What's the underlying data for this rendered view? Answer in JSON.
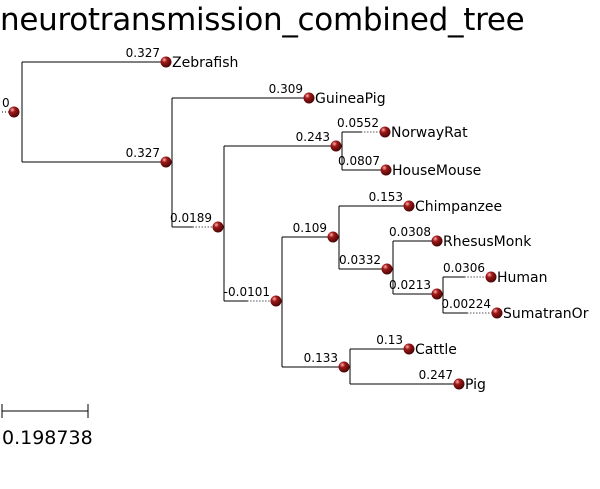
{
  "title": "neurotransmission_combined_tree",
  "node_color": "#a01818",
  "scale_bar": {
    "label": "0.198738"
  },
  "root": {
    "label": "0"
  },
  "internal_nodes": [
    {
      "id": "n1",
      "label": "0.327"
    },
    {
      "id": "n2",
      "label": "0.0189"
    },
    {
      "id": "n3",
      "label": "0.243"
    },
    {
      "id": "n4",
      "label": "-0.0101"
    },
    {
      "id": "n5",
      "label": "0.109"
    },
    {
      "id": "n6",
      "label": "0.0332"
    },
    {
      "id": "n7",
      "label": "0.0213"
    },
    {
      "id": "n8",
      "label": "0.133"
    }
  ],
  "leaves": [
    {
      "id": "zebrafish",
      "name": "Zebrafish",
      "length": "0.327"
    },
    {
      "id": "guineapig",
      "name": "GuineaPig",
      "length": "0.309"
    },
    {
      "id": "norwayrat",
      "name": "NorwayRat",
      "length": "0.0552"
    },
    {
      "id": "housemouse",
      "name": "HouseMouse",
      "length": "0.0807"
    },
    {
      "id": "chimpanzee",
      "name": "Chimpanzee",
      "length": "0.153"
    },
    {
      "id": "rhesusmonk",
      "name": "RhesusMonk",
      "length": "0.0308"
    },
    {
      "id": "human",
      "name": "Human",
      "length": "0.0306"
    },
    {
      "id": "sumatranor",
      "name": "SumatranOr",
      "length": "0.00224"
    },
    {
      "id": "cattle",
      "name": "Cattle",
      "length": "0.13"
    },
    {
      "id": "pig",
      "name": "Pig",
      "length": "0.247"
    }
  ]
}
